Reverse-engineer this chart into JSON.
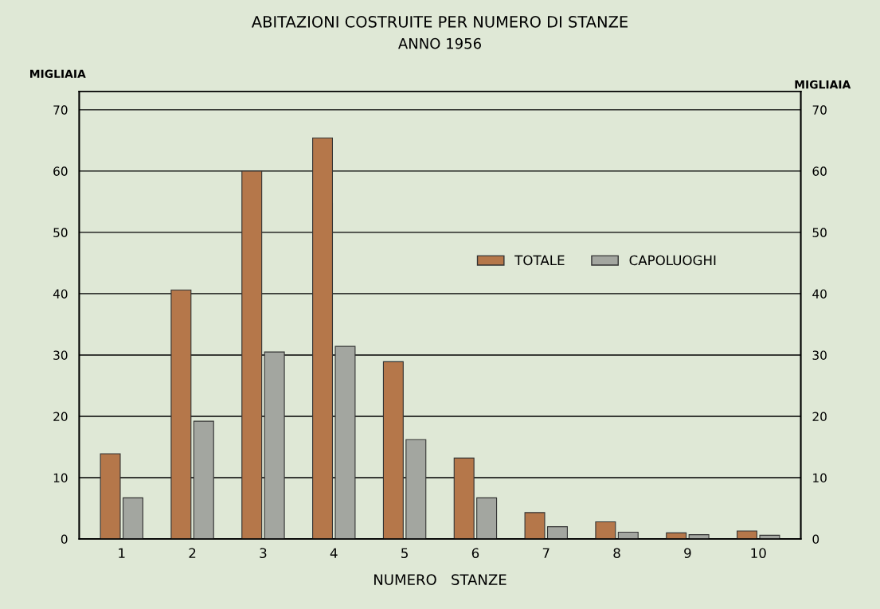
{
  "chart_data": {
    "type": "bar",
    "title": "ABITAZIONI COSTRUITE PER NUMERO DI STANZE",
    "subtitle": "ANNO 1956",
    "xlabel": "NUMERO   STANZE",
    "ylabel": "MIGLIAIA",
    "y2label": "MIGLIAIA",
    "categories": [
      "1",
      "2",
      "3",
      "4",
      "5",
      "6",
      "7",
      "8",
      "9",
      "10"
    ],
    "series": [
      {
        "name": "TOTALE",
        "color": "#b5774a",
        "values": [
          13.9,
          40.6,
          60.0,
          65.4,
          28.9,
          13.2,
          4.3,
          2.8,
          1.0,
          1.3
        ]
      },
      {
        "name": "CAPOLUOGHI",
        "color": "#a3a6a0",
        "values": [
          6.7,
          19.2,
          30.5,
          31.4,
          16.2,
          6.7,
          2.0,
          1.1,
          0.7,
          0.6
        ]
      }
    ],
    "ylim": [
      0,
      73
    ],
    "yticks": [
      0,
      10,
      20,
      30,
      40,
      50,
      60,
      70
    ],
    "y2lim": [
      0,
      73
    ],
    "y2ticks": [
      0,
      10,
      20,
      30,
      40,
      50,
      60,
      70
    ],
    "grid": "y",
    "legend": "right"
  }
}
